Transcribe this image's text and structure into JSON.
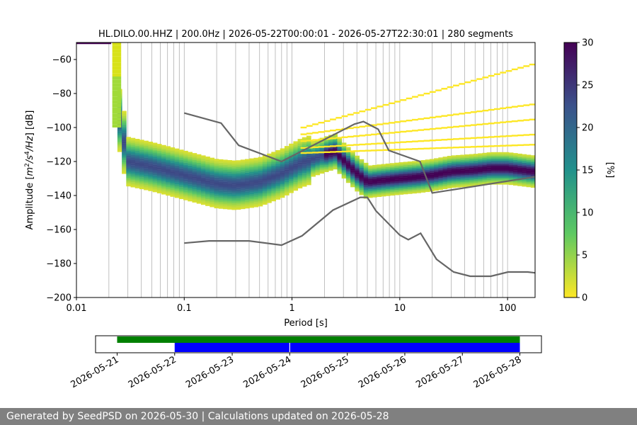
{
  "chart_data": {
    "type": "heatmap",
    "title": "HL.DILO.00.HHZ | 200.0Hz | 2026-05-22T00:00:01 - 2026-05-27T22:30:01 | 280 segments",
    "xlabel": "Period [s]",
    "ylabel": "Amplitude [m²/s⁴/Hz] [dB]",
    "x_scale": "log",
    "xlim": [
      0.01,
      180
    ],
    "ylim": [
      -200,
      -50
    ],
    "x_ticks": [
      "0.01",
      "0.1",
      "1",
      "10",
      "100"
    ],
    "y_ticks": [
      "−60",
      "−80",
      "−100",
      "−120",
      "−140",
      "−160",
      "−180",
      "−200"
    ],
    "grid": "vertical period grid lines",
    "colorbar": {
      "label": "[%]",
      "range": [
        0,
        30
      ],
      "ticks": [
        "0",
        "5",
        "10",
        "15",
        "20",
        "25",
        "30"
      ],
      "colormap": "viridis_r"
    },
    "noise_models": [
      {
        "curve": "NHNM",
        "x": [
          0.1,
          0.22,
          0.32,
          0.8,
          3.8,
          4.6,
          6.3,
          7.9,
          15.4,
          20,
          180
        ],
        "y": [
          -91.5,
          -97.4,
          -110.5,
          -120,
          -98,
          -96.5,
          -101,
          -113.5,
          -120,
          -138.5,
          -129
        ]
      },
      {
        "curve": "NLNM",
        "x": [
          0.1,
          0.17,
          0.4,
          0.8,
          1.24,
          2.4,
          4.3,
          5.0,
          6.0,
          10,
          12,
          15.6,
          21.9,
          31.6,
          45,
          70,
          101,
          154,
          180
        ],
        "y": [
          -168,
          -166.7,
          -166.7,
          -169.2,
          -163.7,
          -148.6,
          -141.1,
          -141.1,
          -149,
          -163.3,
          -166,
          -162.2,
          -177.5,
          -185,
          -187.5,
          -187.5,
          -185,
          -185,
          -185.5
        ]
      }
    ],
    "mode_curve": {
      "x": [
        0.025,
        0.03,
        0.05,
        0.1,
        0.2,
        0.3,
        0.5,
        0.8,
        1.2,
        2.0,
        2.5,
        3.2,
        4.0,
        5.0,
        7.0,
        10,
        15,
        20,
        30,
        50,
        70,
        100,
        180
      ],
      "y": [
        -95,
        -120,
        -123,
        -128,
        -133,
        -134,
        -132,
        -127,
        -121,
        -116,
        -114,
        -121,
        -127,
        -132,
        -131,
        -130,
        -129,
        -128,
        -126,
        -125,
        -124,
        -124,
        -126
      ]
    },
    "data_availability": {
      "x_ticks": [
        "2026-05-21",
        "2026-05-22",
        "2026-05-23",
        "2026-05-24",
        "2026-05-25",
        "2026-05-26",
        "2026-05-27",
        "2026-05-28"
      ],
      "xlim": [
        "2026-05-20T15:00",
        "2026-05-28T09:00"
      ],
      "green": [
        {
          "start": "2026-05-21T00:00",
          "end": "2026-05-28T00:00"
        }
      ],
      "blue": [
        {
          "start": "2026-05-22T00:00",
          "end": "2026-05-23T23:50"
        },
        {
          "start": "2026-05-24T00:10",
          "end": "2026-05-28T00:00"
        }
      ]
    }
  },
  "footer": {
    "text": "Generated by SeedPSD on 2026-05-30 | Calculations updated on 2026-05-28"
  }
}
